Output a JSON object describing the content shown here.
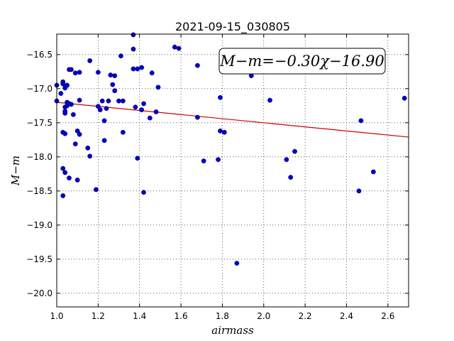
{
  "chart_data": {
    "type": "scatter",
    "title": "2021-09-15_030805",
    "xlabel": "airmass",
    "ylabel": "M−m",
    "xlim": [
      1.0,
      2.7
    ],
    "ylim": [
      -20.2,
      -16.2
    ],
    "y_inverted": true,
    "grid": true,
    "x_ticks": [
      "1.0",
      "1.2",
      "1.4",
      "1.6",
      "1.8",
      "2.0",
      "2.2",
      "2.4",
      "2.6"
    ],
    "y_ticks": [
      "−16.5",
      "−17.0",
      "−17.5",
      "−18.0",
      "−18.5",
      "−19.0",
      "−19.5",
      "−20.0"
    ],
    "fit_label": "M−m=−0.30χ−16.90",
    "legend_position": "top-right",
    "colors": {
      "points": "#0000cc",
      "fit_line": "#cc0000"
    },
    "fit": {
      "slope": -0.3,
      "intercept": -16.9
    },
    "points": [
      [
        1.0,
        -16.95
      ],
      [
        1.0,
        -17.18
      ],
      [
        1.02,
        -17.07
      ],
      [
        1.03,
        -16.9
      ],
      [
        1.03,
        -16.93
      ],
      [
        1.04,
        -16.99
      ],
      [
        1.05,
        -16.95
      ],
      [
        1.05,
        -17.2
      ],
      [
        1.04,
        -17.27
      ],
      [
        1.04,
        -17.33
      ],
      [
        1.04,
        -17.36
      ],
      [
        1.05,
        -17.25
      ],
      [
        1.06,
        -17.22
      ],
      [
        1.07,
        -17.23
      ],
      [
        1.06,
        -16.72
      ],
      [
        1.07,
        -16.72
      ],
      [
        1.09,
        -16.77
      ],
      [
        1.11,
        -16.76
      ],
      [
        1.11,
        -17.17
      ],
      [
        1.08,
        -17.38
      ],
      [
        1.1,
        -17.62
      ],
      [
        1.11,
        -17.67
      ],
      [
        1.09,
        -17.81
      ],
      [
        1.03,
        -17.64
      ],
      [
        1.04,
        -17.66
      ],
      [
        1.03,
        -18.17
      ],
      [
        1.04,
        -18.23
      ],
      [
        1.06,
        -18.31
      ],
      [
        1.03,
        -18.57
      ],
      [
        1.1,
        -18.34
      ],
      [
        1.15,
        -17.87
      ],
      [
        1.16,
        -17.99
      ],
      [
        1.16,
        -16.59
      ],
      [
        1.2,
        -16.76
      ],
      [
        1.2,
        -17.26
      ],
      [
        1.21,
        -17.31
      ],
      [
        1.22,
        -17.18
      ],
      [
        1.23,
        -17.47
      ],
      [
        1.24,
        -17.29
      ],
      [
        1.25,
        -17.18
      ],
      [
        1.23,
        -17.76
      ],
      [
        1.19,
        -18.48
      ],
      [
        1.26,
        -16.8
      ],
      [
        1.27,
        -16.94
      ],
      [
        1.28,
        -16.81
      ],
      [
        1.28,
        -17.03
      ],
      [
        1.3,
        -17.18
      ],
      [
        1.32,
        -17.18
      ],
      [
        1.31,
        -16.52
      ],
      [
        1.32,
        -17.64
      ],
      [
        1.37,
        -16.21
      ],
      [
        1.37,
        -16.42
      ],
      [
        1.37,
        -16.71
      ],
      [
        1.39,
        -16.71
      ],
      [
        1.41,
        -16.69
      ],
      [
        1.38,
        -17.27
      ],
      [
        1.41,
        -17.31
      ],
      [
        1.42,
        -17.22
      ],
      [
        1.45,
        -17.43
      ],
      [
        1.46,
        -16.77
      ],
      [
        1.48,
        -17.34
      ],
      [
        1.49,
        -16.98
      ],
      [
        1.39,
        -18.02
      ],
      [
        1.42,
        -18.52
      ],
      [
        1.57,
        -16.39
      ],
      [
        1.59,
        -16.41
      ],
      [
        1.68,
        -16.66
      ],
      [
        1.68,
        -17.42
      ],
      [
        1.71,
        -18.06
      ],
      [
        1.78,
        -18.04
      ],
      [
        1.79,
        -17.13
      ],
      [
        1.79,
        -17.62
      ],
      [
        1.81,
        -17.64
      ],
      [
        1.87,
        -19.56
      ],
      [
        1.94,
        -16.81
      ],
      [
        2.03,
        -17.17
      ],
      [
        2.11,
        -18.04
      ],
      [
        2.13,
        -18.3
      ],
      [
        2.15,
        -17.92
      ],
      [
        2.46,
        -18.5
      ],
      [
        2.47,
        -17.47
      ],
      [
        2.53,
        -18.22
      ],
      [
        2.68,
        -17.14
      ]
    ]
  }
}
